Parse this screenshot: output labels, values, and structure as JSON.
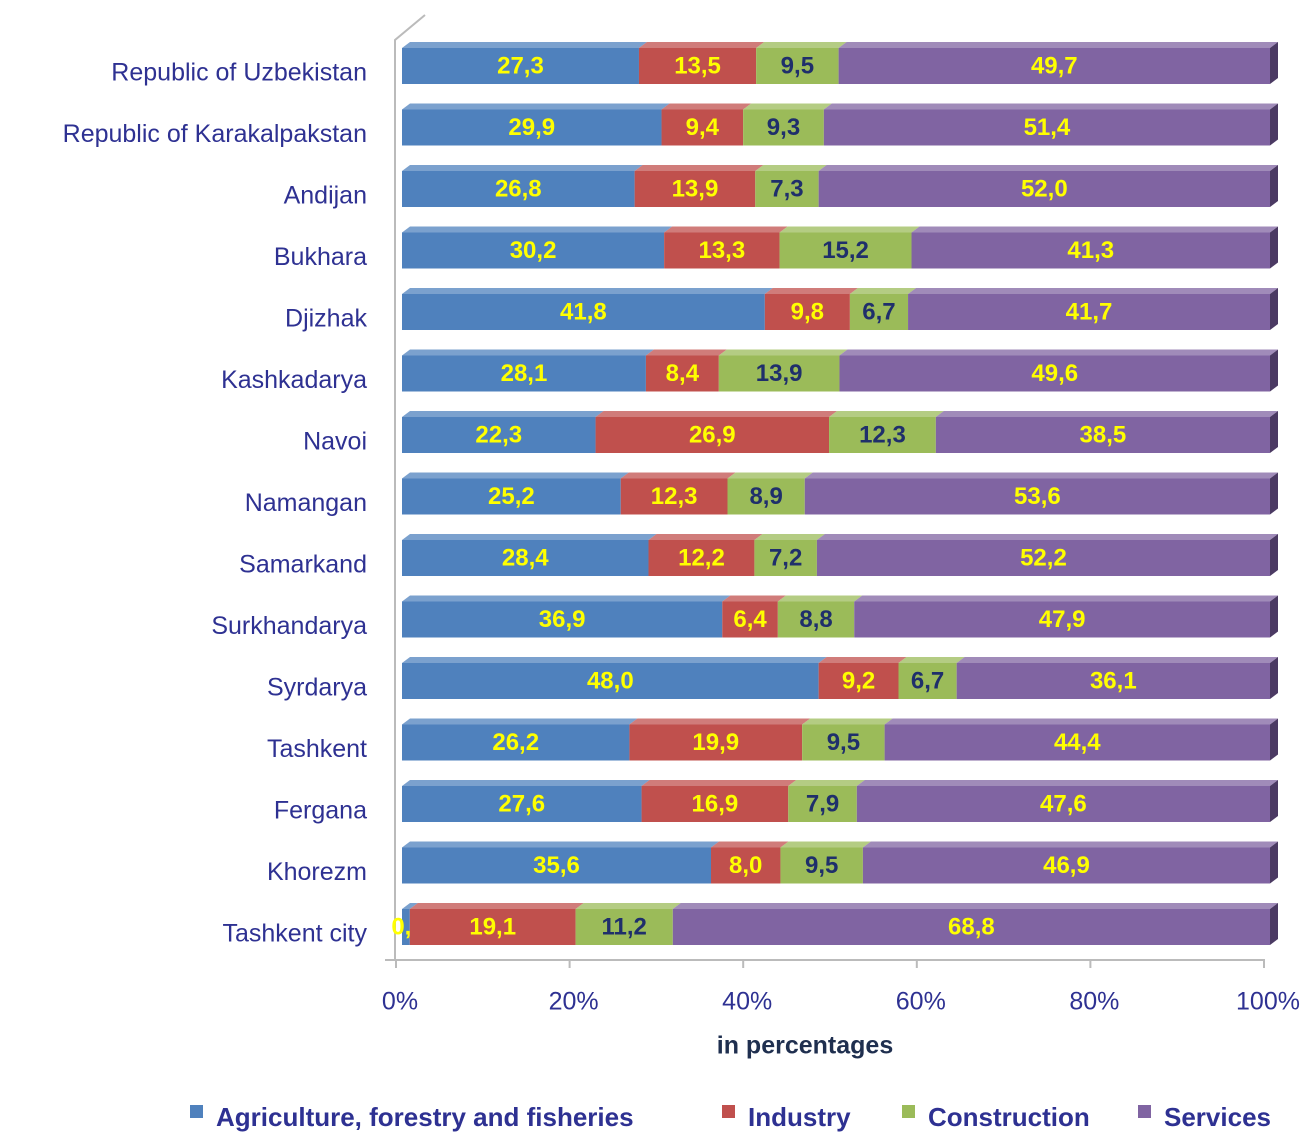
{
  "chart_data": {
    "type": "stacked_bar_horizontal",
    "categories": [
      "Republic of Uzbekistan",
      "Republic of Karakalpakstan",
      "Andijan",
      "Bukhara",
      "Djizhak",
      "Kashkadarya",
      "Navoi",
      "Namangan",
      "Samarkand",
      "Surkhandarya",
      "Syrdarya",
      "Tashkent",
      "Fergana",
      "Khorezm",
      "Tashkent city"
    ],
    "series": [
      {
        "name": "Agriculture, forestry and fisheries",
        "color": "#4f81bd",
        "label_color": "#ffff00",
        "values": [
          27.3,
          29.9,
          26.8,
          30.2,
          41.8,
          28.1,
          22.3,
          25.2,
          28.4,
          36.9,
          48.0,
          26.2,
          27.6,
          35.6,
          0.9
        ],
        "value_labels": [
          "27,3",
          "29,9",
          "26,8",
          "30,2",
          "41,8",
          "28,1",
          "22,3",
          "25,2",
          "28,4",
          "36,9",
          "48,0",
          "26,2",
          "27,6",
          "35,6",
          "0,9"
        ]
      },
      {
        "name": "Industry",
        "color": "#c0504d",
        "label_color": "#ffff00",
        "values": [
          13.5,
          9.4,
          13.9,
          13.3,
          9.8,
          8.4,
          26.9,
          12.3,
          12.2,
          6.4,
          9.2,
          19.9,
          16.9,
          8.0,
          19.1
        ],
        "value_labels": [
          "13,5",
          "9,4",
          "13,9",
          "13,3",
          "9,8",
          "8,4",
          "26,9",
          "12,3",
          "12,2",
          "6,4",
          "9,2",
          "19,9",
          "16,9",
          "8,0",
          "19,1"
        ]
      },
      {
        "name": "Construction",
        "color": "#9bbb59",
        "label_color": "#1f2f6b",
        "values": [
          9.5,
          9.3,
          7.3,
          15.2,
          6.7,
          13.9,
          12.3,
          8.9,
          7.2,
          8.8,
          6.7,
          9.5,
          7.9,
          9.5,
          11.2
        ],
        "value_labels": [
          "9,5",
          "9,3",
          "7,3",
          "15,2",
          "6,7",
          "13,9",
          "12,3",
          "8,9",
          "7,2",
          "8,8",
          "6,7",
          "9,5",
          "7,9",
          "9,5",
          "11,2"
        ]
      },
      {
        "name": "Services",
        "color": "#8064a2",
        "label_color": "#ffff00",
        "values": [
          49.7,
          51.4,
          52.0,
          41.3,
          41.7,
          49.6,
          38.5,
          53.6,
          52.2,
          47.9,
          36.1,
          44.4,
          47.6,
          46.9,
          68.8
        ],
        "value_labels": [
          "49,7",
          "51,4",
          "52,0",
          "41,3",
          "41,7",
          "49,6",
          "38,5",
          "53,6",
          "52,2",
          "47,9",
          "36,1",
          "44,4",
          "47,6",
          "46,9",
          "68,8"
        ]
      }
    ],
    "xlim": [
      0,
      100
    ],
    "xticks": [
      {
        "value": 0,
        "label": "0%"
      },
      {
        "value": 20,
        "label": "20%"
      },
      {
        "value": 40,
        "label": "40%"
      },
      {
        "value": 60,
        "label": "60%"
      },
      {
        "value": 80,
        "label": "80%"
      },
      {
        "value": 100,
        "label": "100%"
      }
    ],
    "x_label": "in percentages",
    "legend": "bottom"
  }
}
